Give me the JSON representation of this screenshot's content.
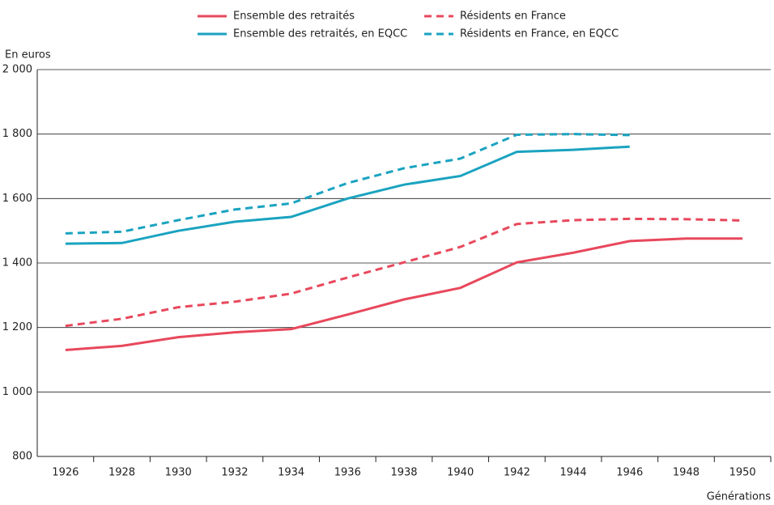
{
  "chart_data": {
    "type": "line",
    "y_label": "En euros",
    "x_label": "Générations",
    "categories": [
      "1926",
      "1928",
      "1930",
      "1932",
      "1934",
      "1936",
      "1938",
      "1940",
      "1942",
      "1944",
      "1946",
      "1948",
      "1950"
    ],
    "series": [
      {
        "name": "Ensemble des retraités",
        "color": "#e8485c",
        "dash": false,
        "values": [
          1130,
          1143,
          1170,
          1185,
          1195,
          1240,
          1287,
          1323,
          1402,
          1432,
          1468,
          1476,
          1476
        ]
      },
      {
        "name": "Résidents en France",
        "color": "#e8485c",
        "dash": true,
        "values": [
          1205,
          1227,
          1263,
          1280,
          1305,
          1355,
          1402,
          1450,
          1521,
          1533,
          1537,
          1536,
          1532
        ]
      },
      {
        "name": "Ensemble des retraités, en EQCC",
        "color": "#1aa3c0",
        "dash": false,
        "values": [
          1460,
          1462,
          1500,
          1528,
          1543,
          1600,
          1643,
          1670,
          1745,
          1751,
          1761,
          null,
          null
        ]
      },
      {
        "name": "Résidents en France, en EQCC",
        "color": "#1aa3c0",
        "dash": true,
        "values": [
          1492,
          1497,
          1533,
          1566,
          1585,
          1648,
          1694,
          1724,
          1798,
          1800,
          1797,
          null,
          null
        ]
      }
    ],
    "ylim": [
      800,
      2000
    ],
    "yticks": [
      800,
      {
        "value": 1000,
        "label": "1 000"
      },
      {
        "value": 1200,
        "label": "1 200"
      },
      {
        "value": 1400,
        "label": "1 400"
      },
      {
        "value": 1600,
        "label": "1 600"
      },
      {
        "value": 1800,
        "label": "1 800"
      },
      {
        "value": 2000,
        "label": "2 000"
      }
    ],
    "grid": true
  }
}
